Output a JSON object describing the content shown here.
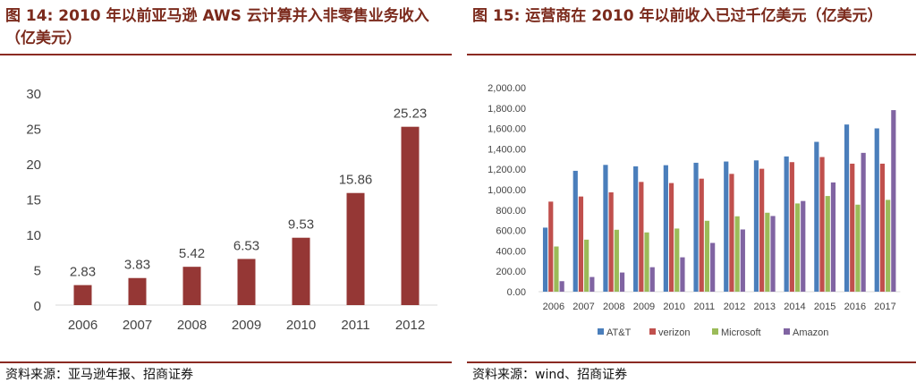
{
  "left": {
    "title": "图 14: 2010 年以前亚马逊 AWS 云计算并入非零售业务收入（亿美元）",
    "source": "资料来源：亚马逊年报、招商证券"
  },
  "right": {
    "title": "图 15: 运营商在 2010 年以前收入已过千亿美元（亿美元）",
    "source": "资料来源：wind、招商证券"
  },
  "chart_data": [
    {
      "type": "bar",
      "title": "图 14: 2010 年以前亚马逊 AWS 云计算并入非零售业务收入（亿美元）",
      "categories": [
        "2006",
        "2007",
        "2008",
        "2009",
        "2010",
        "2011",
        "2012"
      ],
      "values": [
        2.83,
        3.83,
        5.42,
        6.53,
        9.53,
        15.86,
        25.23
      ],
      "data_labels": [
        "2.83",
        "3.83",
        "5.42",
        "6.53",
        "9.53",
        "15.86",
        "25.23"
      ],
      "ylim": [
        0,
        30
      ],
      "yticks": [
        "0",
        "5",
        "10",
        "15",
        "20",
        "25",
        "30"
      ],
      "grid": false,
      "color": "#953735"
    },
    {
      "type": "bar",
      "title": "图 15: 运营商在 2010 年以前收入已过千亿美元（亿美元）",
      "categories": [
        "2006",
        "2007",
        "2008",
        "2009",
        "2010",
        "2011",
        "2012",
        "2013",
        "2014",
        "2015",
        "2016",
        "2017"
      ],
      "series": [
        {
          "name": "AT&T",
          "color": "#4a7ebb",
          "values": [
            628,
            1185,
            1243,
            1229,
            1240,
            1264,
            1276,
            1287,
            1326,
            1469,
            1639,
            1601
          ]
        },
        {
          "name": "verizon",
          "color": "#c0504d",
          "values": [
            883,
            933,
            974,
            1076,
            1065,
            1108,
            1155,
            1205,
            1270,
            1320,
            1255,
            1255
          ]
        },
        {
          "name": "Microsoft",
          "color": "#9bbb59",
          "values": [
            443,
            510,
            607,
            581,
            619,
            695,
            739,
            774,
            865,
            938,
            853,
            900
          ]
        },
        {
          "name": "Amazon",
          "color": "#8064a2",
          "values": [
            103,
            144,
            188,
            240,
            337,
            478,
            610,
            742,
            889,
            1071,
            1361,
            1780
          ]
        }
      ],
      "ylim": [
        0,
        2000
      ],
      "yticks": [
        "0.00",
        "200.00",
        "400.00",
        "600.00",
        "800.00",
        "1,000.00",
        "1,200.00",
        "1,400.00",
        "1,600.00",
        "1,800.00",
        "2,000.00"
      ],
      "grid": false,
      "legend": "bottom"
    }
  ]
}
